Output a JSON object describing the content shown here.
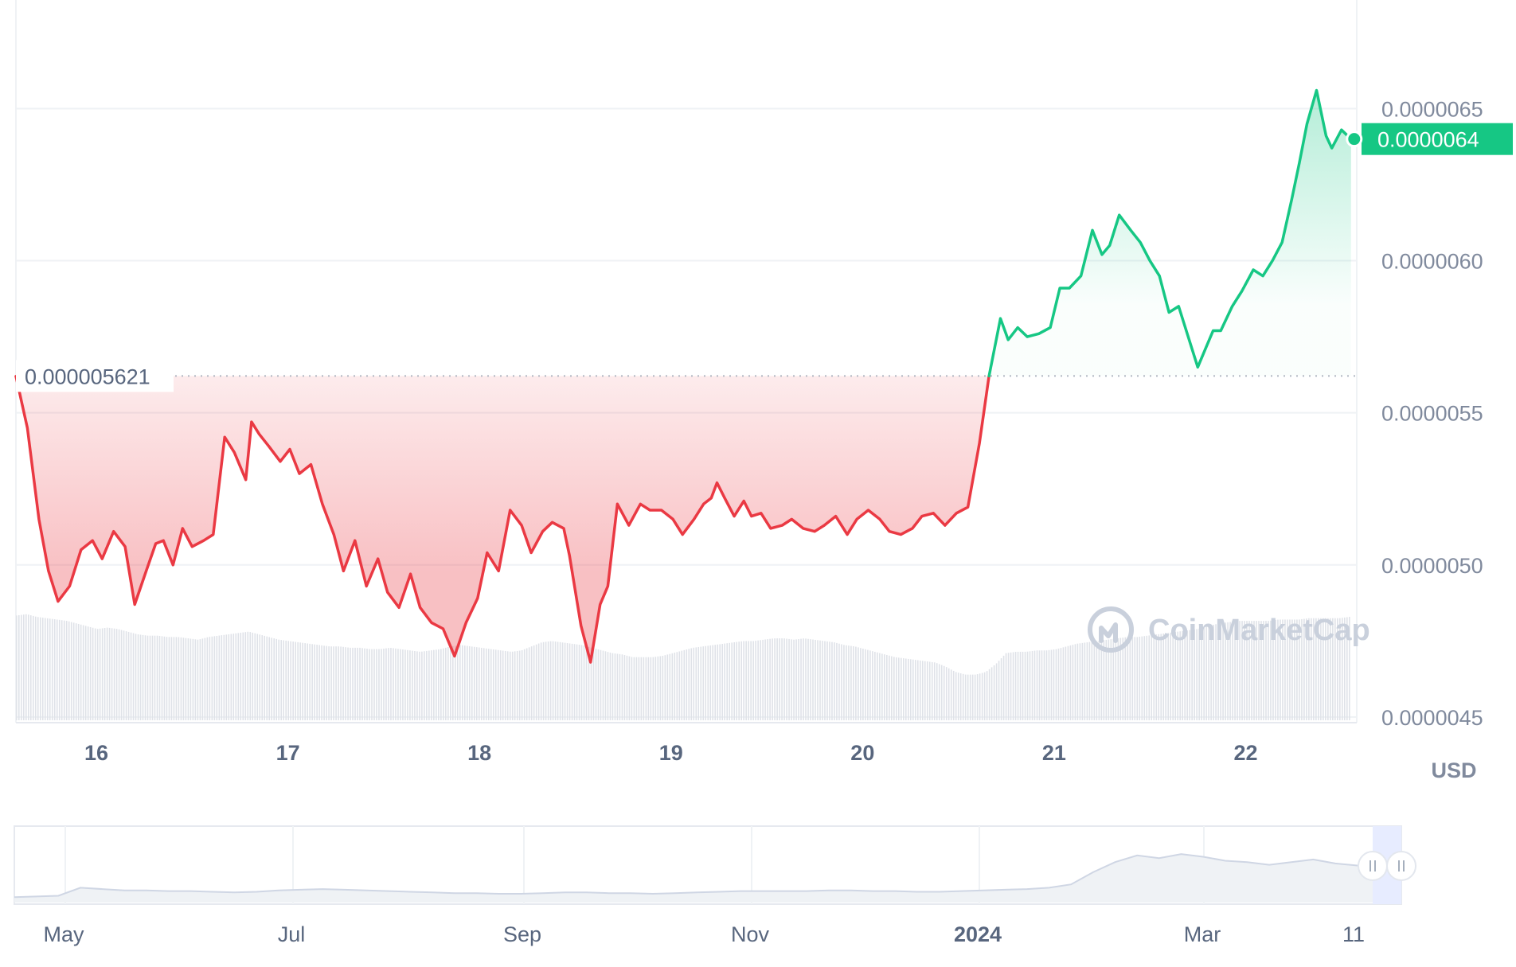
{
  "chart_data": {
    "type": "area",
    "currency": "USD",
    "y_ticks": [
      "0.0000045",
      "0.0000050",
      "0.0000055",
      "0.0000060",
      "0.0000065"
    ],
    "y_tick_values": [
      4.5e-06,
      5e-06,
      5.5e-06,
      6e-06,
      6.5e-06
    ],
    "ylim": [
      4e-06,
      6.7e-06
    ],
    "x_ticks": [
      "16",
      "17",
      "18",
      "19",
      "20",
      "21",
      "22"
    ],
    "x_tick_values": [
      16,
      17,
      18,
      19,
      20,
      21,
      22
    ],
    "xlim": [
      15.58,
      22.58
    ],
    "reference_line": {
      "value": 5.621e-06,
      "label": "0.000005621"
    },
    "current_price": {
      "value": 6.4e-06,
      "label": "0.0000064"
    },
    "series": [
      {
        "x": [
          15.58,
          15.64,
          15.7,
          15.75,
          15.8,
          15.86,
          15.92,
          15.98,
          16.03,
          16.09,
          16.15,
          16.2,
          16.26,
          16.31,
          16.35,
          16.4,
          16.45,
          16.5,
          16.56,
          16.61,
          16.67,
          16.72,
          16.78,
          16.81,
          16.85,
          16.9,
          16.96,
          17.01,
          17.06,
          17.12,
          17.18,
          17.24,
          17.29,
          17.35,
          17.41,
          17.47,
          17.52,
          17.58,
          17.64,
          17.69,
          17.75,
          17.81,
          17.87,
          17.93,
          17.99,
          18.04,
          18.1,
          18.16,
          18.22,
          18.27,
          18.33,
          18.38,
          18.44,
          18.47,
          18.53,
          18.58,
          18.63,
          18.67,
          18.72,
          18.78,
          18.84,
          18.89,
          18.95,
          19.01,
          19.06,
          19.12,
          19.17,
          19.21,
          19.24,
          19.28,
          19.33,
          19.38,
          19.42,
          19.47,
          19.52,
          19.58,
          19.63,
          19.69,
          19.75,
          19.8,
          19.86,
          19.92,
          19.97,
          20.03,
          20.09,
          20.14,
          20.2,
          20.26,
          20.31,
          20.37,
          20.43,
          20.49,
          20.55,
          20.61,
          20.66,
          20.72,
          20.76,
          20.81,
          20.86,
          20.92,
          20.98,
          21.03,
          21.08,
          21.14,
          21.2,
          21.25,
          21.29,
          21.34,
          21.4,
          21.45,
          21.5,
          21.55,
          21.6,
          21.65,
          21.7,
          21.75,
          21.79,
          21.83,
          21.87,
          21.93,
          21.98,
          22.04,
          22.09,
          22.14,
          22.19,
          22.24,
          22.28,
          22.32,
          22.37,
          22.42,
          22.45,
          22.5,
          22.55
        ],
        "y": [
          5.62e-06,
          5.45e-06,
          5.15e-06,
          4.98e-06,
          4.88e-06,
          4.93e-06,
          5.05e-06,
          5.08e-06,
          5.02e-06,
          5.11e-06,
          5.06e-06,
          4.87e-06,
          4.98e-06,
          5.07e-06,
          5.08e-06,
          5e-06,
          5.12e-06,
          5.06e-06,
          5.08e-06,
          5.1e-06,
          5.42e-06,
          5.37e-06,
          5.28e-06,
          5.47e-06,
          5.43e-06,
          5.39e-06,
          5.34e-06,
          5.38e-06,
          5.3e-06,
          5.33e-06,
          5.2e-06,
          5.1e-06,
          4.98e-06,
          5.08e-06,
          4.93e-06,
          5.02e-06,
          4.91e-06,
          4.86e-06,
          4.97e-06,
          4.86e-06,
          4.81e-06,
          4.79e-06,
          4.7e-06,
          4.81e-06,
          4.89e-06,
          5.04e-06,
          4.98e-06,
          5.18e-06,
          5.13e-06,
          5.04e-06,
          5.11e-06,
          5.14e-06,
          5.12e-06,
          5.03e-06,
          4.8e-06,
          4.68e-06,
          4.87e-06,
          4.93e-06,
          5.2e-06,
          5.13e-06,
          5.2e-06,
          5.18e-06,
          5.18e-06,
          5.15e-06,
          5.1e-06,
          5.15e-06,
          5.2e-06,
          5.22e-06,
          5.27e-06,
          5.22e-06,
          5.16e-06,
          5.21e-06,
          5.16e-06,
          5.17e-06,
          5.12e-06,
          5.13e-06,
          5.15e-06,
          5.12e-06,
          5.11e-06,
          5.13e-06,
          5.16e-06,
          5.1e-06,
          5.15e-06,
          5.18e-06,
          5.15e-06,
          5.11e-06,
          5.1e-06,
          5.12e-06,
          5.16e-06,
          5.17e-06,
          5.13e-06,
          5.17e-06,
          5.19e-06,
          5.4e-06,
          5.62e-06,
          5.81e-06,
          5.74e-06,
          5.78e-06,
          5.75e-06,
          5.76e-06,
          5.78e-06,
          5.91e-06,
          5.91e-06,
          5.95e-06,
          6.1e-06,
          6.02e-06,
          6.05e-06,
          6.15e-06,
          6.1e-06,
          6.06e-06,
          6e-06,
          5.95e-06,
          5.83e-06,
          5.85e-06,
          5.75e-06,
          5.65e-06,
          5.71e-06,
          5.77e-06,
          5.77e-06,
          5.85e-06,
          5.9e-06,
          5.97e-06,
          5.95e-06,
          6e-06,
          6.06e-06,
          6.2e-06,
          6.32e-06,
          6.45e-06,
          6.56e-06,
          6.41e-06,
          6.37e-06,
          6.43e-06,
          6.4e-06
        ]
      }
    ],
    "volume": [
      0.78,
      0.79,
      0.77,
      0.76,
      0.75,
      0.74,
      0.72,
      0.7,
      0.68,
      0.69,
      0.68,
      0.66,
      0.64,
      0.63,
      0.63,
      0.62,
      0.62,
      0.61,
      0.6,
      0.62,
      0.63,
      0.64,
      0.65,
      0.66,
      0.64,
      0.62,
      0.6,
      0.59,
      0.58,
      0.57,
      0.56,
      0.55,
      0.55,
      0.54,
      0.54,
      0.53,
      0.53,
      0.54,
      0.53,
      0.52,
      0.51,
      0.52,
      0.53,
      0.55,
      0.56,
      0.55,
      0.54,
      0.53,
      0.52,
      0.51,
      0.52,
      0.55,
      0.58,
      0.59,
      0.58,
      0.57,
      0.56,
      0.54,
      0.52,
      0.5,
      0.49,
      0.47,
      0.47,
      0.47,
      0.48,
      0.5,
      0.52,
      0.54,
      0.55,
      0.56,
      0.57,
      0.58,
      0.59,
      0.59,
      0.6,
      0.61,
      0.61,
      0.6,
      0.61,
      0.6,
      0.59,
      0.58,
      0.56,
      0.55,
      0.53,
      0.51,
      0.49,
      0.47,
      0.46,
      0.45,
      0.44,
      0.43,
      0.4,
      0.36,
      0.34,
      0.34,
      0.36,
      0.42,
      0.5,
      0.51,
      0.51,
      0.52,
      0.52,
      0.53,
      0.55,
      0.57,
      0.58,
      0.59,
      0.6,
      0.61,
      0.62,
      0.62,
      0.63,
      0.64,
      0.65,
      0.66,
      0.67,
      0.68,
      0.7,
      0.72,
      0.73,
      0.74,
      0.74,
      0.74,
      0.74,
      0.75,
      0.75,
      0.75,
      0.76,
      0.76,
      0.76,
      0.76,
      0.77
    ],
    "navigator": {
      "labels": [
        "May",
        "Jul",
        "Sep",
        "Nov",
        "2024",
        "Mar",
        "11"
      ],
      "bold_labels": [
        "2024"
      ],
      "values": [
        0.08,
        0.09,
        0.1,
        0.22,
        0.2,
        0.18,
        0.18,
        0.17,
        0.17,
        0.16,
        0.15,
        0.16,
        0.18,
        0.19,
        0.2,
        0.19,
        0.18,
        0.17,
        0.16,
        0.15,
        0.14,
        0.14,
        0.13,
        0.13,
        0.14,
        0.15,
        0.15,
        0.14,
        0.14,
        0.13,
        0.14,
        0.15,
        0.16,
        0.17,
        0.17,
        0.17,
        0.17,
        0.18,
        0.18,
        0.17,
        0.17,
        0.16,
        0.16,
        0.17,
        0.18,
        0.19,
        0.2,
        0.22,
        0.27,
        0.45,
        0.6,
        0.7,
        0.66,
        0.72,
        0.68,
        0.62,
        0.6,
        0.56,
        0.6,
        0.64,
        0.58,
        0.55,
        0.6,
        0.54
      ]
    },
    "watermark": "CoinMarketCap",
    "colors": {
      "up": "#16c784",
      "down": "#ea3943",
      "grid": "#eff2f5",
      "volume": "#dfe2e8",
      "navigator_fill": "#eff2f5",
      "navigator_line": "#cfd6e4",
      "navigator_selection": "#e7ecff",
      "reference_line": "#b0b6c2",
      "watermark": "#c9d0dc"
    }
  }
}
